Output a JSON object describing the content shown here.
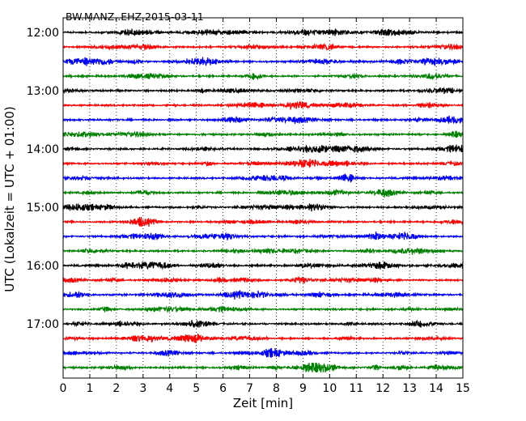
{
  "chart_data": {
    "type": "line",
    "title": "BW.MANZ..EHZ 2015-03-11",
    "xlabel": "Zeit  [min]",
    "ylabel": "UTC (Lokalzeit = UTC + 01:00)",
    "xlim": [
      0,
      15
    ],
    "x_ticks": [
      "0",
      "1",
      "2",
      "3",
      "4",
      "5",
      "6",
      "7",
      "8",
      "9",
      "10",
      "11",
      "12",
      "13",
      "14",
      "15"
    ],
    "y_ticks": [
      "12:00",
      "13:00",
      "14:00",
      "15:00",
      "16:00",
      "17:00"
    ],
    "grid": "vertical dotted",
    "trace_interval_minutes": 15,
    "first_trace": "12:00",
    "trace_count": 24,
    "series_colors": [
      "#000000",
      "#ff0000",
      "#0000ff",
      "#008000"
    ]
  }
}
